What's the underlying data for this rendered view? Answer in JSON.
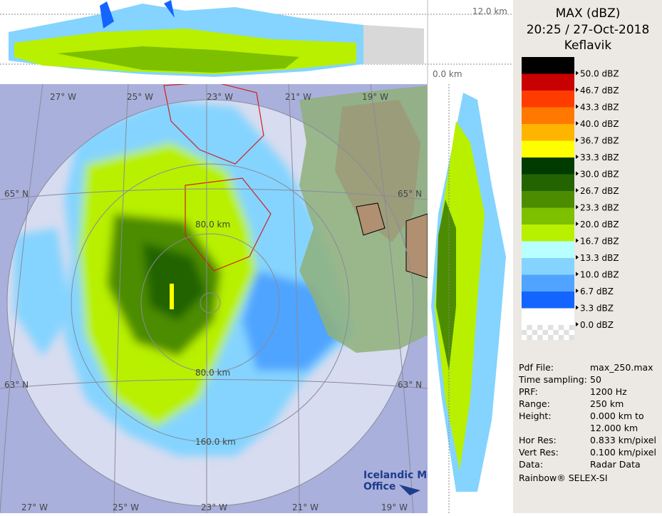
{
  "header": {
    "title": "MAX (dBZ)",
    "datetime": "20:25 / 27-Oct-2018",
    "station": "Keflavik"
  },
  "legend": [
    {
      "label": "50.0 dBZ",
      "color": "#000000"
    },
    {
      "label": "46.7 dBZ",
      "color": "#c80000"
    },
    {
      "label": "43.3 dBZ",
      "color": "#ff3c00"
    },
    {
      "label": "40.0 dBZ",
      "color": "#ff7800"
    },
    {
      "label": "36.7 dBZ",
      "color": "#ffb400"
    },
    {
      "label": "33.3 dBZ",
      "color": "#ffff00"
    },
    {
      "label": "30.0 dBZ",
      "color": "#003c00"
    },
    {
      "label": "26.7 dBZ",
      "color": "#246400"
    },
    {
      "label": "23.3 dBZ",
      "color": "#4c8c00"
    },
    {
      "label": "20.0 dBZ",
      "color": "#7cc000"
    },
    {
      "label": "16.7 dBZ",
      "color": "#b8f000"
    },
    {
      "label": "13.3 dBZ",
      "color": "#b8ffff"
    },
    {
      "label": "10.0 dBZ",
      "color": "#84d4ff"
    },
    {
      "label": "6.7 dBZ",
      "color": "#50a4ff"
    },
    {
      "label": "3.3 dBZ",
      "color": "#1464ff"
    },
    {
      "label": "0.0 dBZ",
      "color": "#ffffff"
    }
  ],
  "info": [
    {
      "label": "Pdf File:",
      "lines": [
        "max_250.max"
      ]
    },
    {
      "label": "Time sampling:",
      "lines": [
        "50"
      ]
    },
    {
      "label": "PRF:",
      "lines": [
        "1200 Hz"
      ]
    },
    {
      "label": "Range:",
      "lines": [
        "250 km"
      ]
    },
    {
      "label": "Height:",
      "lines": [
        "0.000 km to",
        "12.000 km"
      ]
    },
    {
      "label": "Hor Res:",
      "lines": [
        "0.833 km/pixel"
      ]
    },
    {
      "label": "Vert Res:",
      "lines": [
        "0.100 km/pixel"
      ]
    },
    {
      "label": "Data:",
      "lines": [
        "Radar Data"
      ]
    }
  ],
  "footer": "Rainbow® SELEX-SI",
  "map": {
    "lon_top": [
      "27° W",
      "25° W",
      "23° W",
      "21° W",
      "19° W"
    ],
    "lon_bottom": [
      "27° W",
      "25° W",
      "23° W",
      "21° W",
      "19° W"
    ],
    "lat_left": [
      "65° N",
      "63° N"
    ],
    "lat_right": [
      "65° N",
      "63° N"
    ],
    "ranges": [
      "80.0 km",
      "80.0 km",
      "160.0 km"
    ]
  },
  "heights": [
    "12.0 km",
    "0.0 km"
  ],
  "logo": [
    "Icelandic Met",
    "Office"
  ]
}
